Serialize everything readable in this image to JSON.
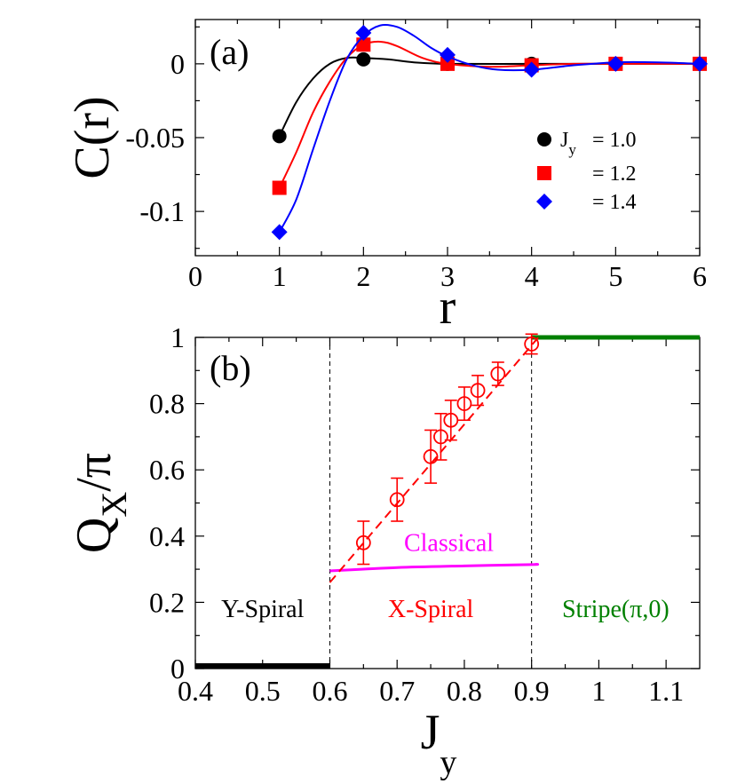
{
  "colors": {
    "black": "#000000",
    "red": "#ff0000",
    "blue": "#0000ff",
    "magenta": "#ff00ff",
    "green": "#008000"
  },
  "chart_data": [
    {
      "type": "line",
      "panel_label": "(a)",
      "xlabel": "r",
      "ylabel": "C(r)",
      "xlim": [
        0,
        6
      ],
      "ylim": [
        -0.13,
        0.03
      ],
      "xticks": [
        "0",
        "1",
        "2",
        "3",
        "4",
        "5",
        "6"
      ],
      "yticks": [
        {
          "value": 0,
          "label": "0"
        },
        {
          "value": -0.05,
          "label": "-0.05"
        },
        {
          "value": -0.1,
          "label": "-0.1"
        }
      ],
      "legend": {
        "position": "right",
        "title_prefix": "J",
        "title_sub": "y"
      },
      "series": [
        {
          "name": "= 1.0",
          "color": "black",
          "marker": "circle",
          "x": [
            1,
            2,
            3,
            4,
            5,
            6
          ],
          "y": [
            -0.049,
            0.003,
            0.0,
            0.0,
            0.0,
            0.0
          ],
          "curve": [
            [
              1,
              -0.049
            ],
            [
              1.2,
              -0.026
            ],
            [
              1.4,
              -0.01
            ],
            [
              1.6,
              0.0
            ],
            [
              1.8,
              0.004
            ],
            [
              2,
              0.004
            ],
            [
              2.3,
              0.003
            ],
            [
              2.6,
              0.001
            ],
            [
              3,
              0.0
            ],
            [
              4,
              0.0
            ],
            [
              5,
              0.0
            ],
            [
              6,
              0.0
            ]
          ]
        },
        {
          "name": "= 1.2",
          "color": "red",
          "marker": "square",
          "x": [
            1,
            2,
            3,
            4,
            5,
            6
          ],
          "y": [
            -0.084,
            0.013,
            0.0,
            -0.001,
            0.0,
            0.0
          ],
          "curve": [
            [
              1,
              -0.084
            ],
            [
              1.2,
              -0.06
            ],
            [
              1.4,
              -0.033
            ],
            [
              1.6,
              -0.012
            ],
            [
              1.8,
              0.004
            ],
            [
              2,
              0.013
            ],
            [
              2.2,
              0.015
            ],
            [
              2.4,
              0.012
            ],
            [
              2.7,
              0.004
            ],
            [
              3,
              0.0
            ],
            [
              3.5,
              -0.002
            ],
            [
              4,
              -0.001
            ],
            [
              4.5,
              0.0
            ],
            [
              5,
              0.0
            ],
            [
              6,
              0.0
            ]
          ]
        },
        {
          "name": "= 1.4",
          "color": "blue",
          "marker": "diamond",
          "x": [
            1,
            2,
            3,
            4,
            5,
            6
          ],
          "y": [
            -0.114,
            0.021,
            0.006,
            -0.004,
            0.0,
            0.0
          ],
          "curve": [
            [
              1,
              -0.114
            ],
            [
              1.2,
              -0.092
            ],
            [
              1.4,
              -0.058
            ],
            [
              1.6,
              -0.025
            ],
            [
              1.8,
              0.003
            ],
            [
              2,
              0.019
            ],
            [
              2.2,
              0.026
            ],
            [
              2.4,
              0.025
            ],
            [
              2.6,
              0.019
            ],
            [
              2.8,
              0.011
            ],
            [
              3,
              0.005
            ],
            [
              3.3,
              -0.001
            ],
            [
              3.6,
              -0.004
            ],
            [
              4,
              -0.004
            ],
            [
              4.5,
              -0.001
            ],
            [
              5,
              0.001
            ],
            [
              5.5,
              0.001
            ],
            [
              6,
              0.0
            ]
          ]
        }
      ]
    },
    {
      "type": "line",
      "panel_label": "(b)",
      "xlabel": "J",
      "xlabel_sub": "y",
      "ylabel": "Q",
      "ylabel_sub": "X",
      "ylabel_suffix": "/π",
      "xlim": [
        0.4,
        1.15
      ],
      "ylim": [
        0,
        1
      ],
      "xticks": [
        {
          "value": 0.4,
          "label": "0.4"
        },
        {
          "value": 0.5,
          "label": "0.5"
        },
        {
          "value": 0.6,
          "label": "0.6"
        },
        {
          "value": 0.7,
          "label": "0.7"
        },
        {
          "value": 0.8,
          "label": "0.8"
        },
        {
          "value": 0.9,
          "label": "0.9"
        },
        {
          "value": 1.0,
          "label": "1"
        },
        {
          "value": 1.1,
          "label": "1.1"
        }
      ],
      "yticks": [
        {
          "value": 0,
          "label": "0"
        },
        {
          "value": 0.2,
          "label": "0.2"
        },
        {
          "value": 0.4,
          "label": "0.4"
        },
        {
          "value": 0.6,
          "label": "0.6"
        },
        {
          "value": 0.8,
          "label": "0.8"
        },
        {
          "value": 1,
          "label": "1"
        }
      ],
      "phase_boundaries": [
        0.6,
        0.9
      ],
      "data_points": {
        "color": "red",
        "x": [
          0.65,
          0.7,
          0.75,
          0.765,
          0.78,
          0.8,
          0.82,
          0.85,
          0.9
        ],
        "y": [
          0.38,
          0.51,
          0.64,
          0.7,
          0.75,
          0.8,
          0.84,
          0.89,
          0.98
        ],
        "err": [
          0.065,
          0.065,
          0.08,
          0.07,
          0.06,
          0.05,
          0.045,
          0.035,
          0.03
        ]
      },
      "fit_line": {
        "color": "red",
        "x": [
          0.6,
          0.91
        ],
        "y": [
          0.26,
          1.0
        ]
      },
      "classical": {
        "label": "Classical",
        "color": "magenta",
        "x": [
          0.6,
          0.7,
          0.8,
          0.9,
          0.905
        ],
        "y": [
          0.295,
          0.305,
          0.31,
          0.314,
          0.315
        ]
      },
      "y_spiral_line": {
        "color": "black",
        "x": [
          0.4,
          0.6
        ],
        "y": [
          0.0,
          0.0
        ]
      },
      "stripe_line": {
        "color": "green",
        "x": [
          0.9,
          1.15
        ],
        "y": [
          1.0,
          1.0
        ]
      },
      "regions": [
        {
          "label": "Y-Spiral",
          "color": "black",
          "x": 0.5
        },
        {
          "label": "X-Spiral",
          "color": "red",
          "x": 0.75
        },
        {
          "label": "Stripe(π,0)",
          "color": "green",
          "x": 1.025
        }
      ]
    }
  ]
}
